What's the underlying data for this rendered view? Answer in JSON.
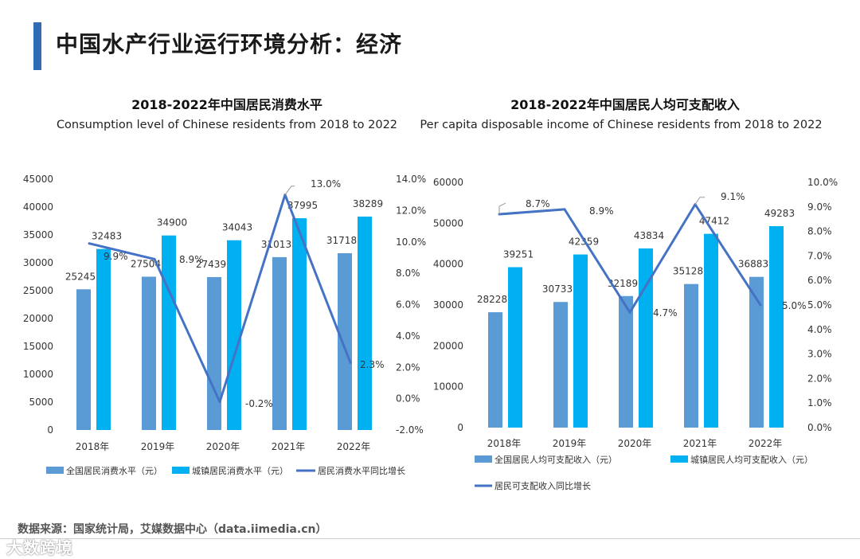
{
  "page": {
    "title": "中国水产行业运行环境分析：经济",
    "source": "数据来源：国家统计局，艾媒数据中心（data.iimedia.cn）",
    "watermark": "大数跨境"
  },
  "colors": {
    "accent": "#2f6cb5",
    "bar1": "#5b9bd5",
    "bar2": "#00b0f0",
    "line": "#4472c4"
  },
  "chart_data": [
    {
      "type": "bar",
      "title": "2018-2022年中国居民消费水平",
      "subtitle": "Consumption level of Chinese residents from 2018 to 2022",
      "categories": [
        "2018年",
        "2019年",
        "2020年",
        "2021年",
        "2022年"
      ],
      "series": [
        {
          "name": "全国居民消费水平（元）",
          "kind": "bar",
          "values": [
            25245,
            27504,
            27439,
            31013,
            31718
          ]
        },
        {
          "name": "城镇居民消费水平（元）",
          "kind": "bar",
          "values": [
            32483,
            34900,
            34043,
            37995,
            38289
          ]
        },
        {
          "name": "居民消费水平同比增长",
          "kind": "line",
          "axis": "right",
          "values": [
            9.9,
            8.9,
            -0.2,
            13.0,
            2.3
          ],
          "labels": [
            "9.9%",
            "8.9%",
            "-0.2%",
            "13.0%",
            "2.3%"
          ]
        }
      ],
      "ylim": [
        0,
        45000
      ],
      "yticks": [
        "0",
        "5000",
        "10000",
        "15000",
        "20000",
        "25000",
        "30000",
        "35000",
        "40000",
        "45000"
      ],
      "y2lim": [
        -2.0,
        14.0
      ],
      "y2ticks": [
        "-2.0%",
        "0.0%",
        "2.0%",
        "4.0%",
        "6.0%",
        "8.0%",
        "10.0%",
        "12.0%",
        "14.0%"
      ]
    },
    {
      "type": "bar",
      "title": "2018-2022年中国居民人均可支配收入",
      "subtitle": "Per capita disposable income of Chinese residents from 2018 to 2022",
      "categories": [
        "2018年",
        "2019年",
        "2020年",
        "2021年",
        "2022年"
      ],
      "series": [
        {
          "name": "全国居民人均可支配收入（元）",
          "kind": "bar",
          "values": [
            28228,
            30733,
            32189,
            35128,
            36883
          ]
        },
        {
          "name": "城镇居民人均可支配收入（元）",
          "kind": "bar",
          "values": [
            39251,
            42359,
            43834,
            47412,
            49283
          ]
        },
        {
          "name": "居民可支配收入同比增长",
          "kind": "line",
          "axis": "right",
          "values": [
            8.7,
            8.9,
            4.7,
            9.1,
            5.0
          ],
          "labels": [
            "8.7%",
            "8.9%",
            "4.7%",
            "9.1%",
            "5.0%"
          ]
        }
      ],
      "ylim": [
        0,
        60000
      ],
      "yticks": [
        "0",
        "10000",
        "20000",
        "30000",
        "40000",
        "50000",
        "60000"
      ],
      "y2lim": [
        0.0,
        10.0
      ],
      "y2ticks": [
        "0.0%",
        "1.0%",
        "2.0%",
        "3.0%",
        "4.0%",
        "5.0%",
        "6.0%",
        "7.0%",
        "8.0%",
        "9.0%",
        "10.0%"
      ]
    }
  ]
}
